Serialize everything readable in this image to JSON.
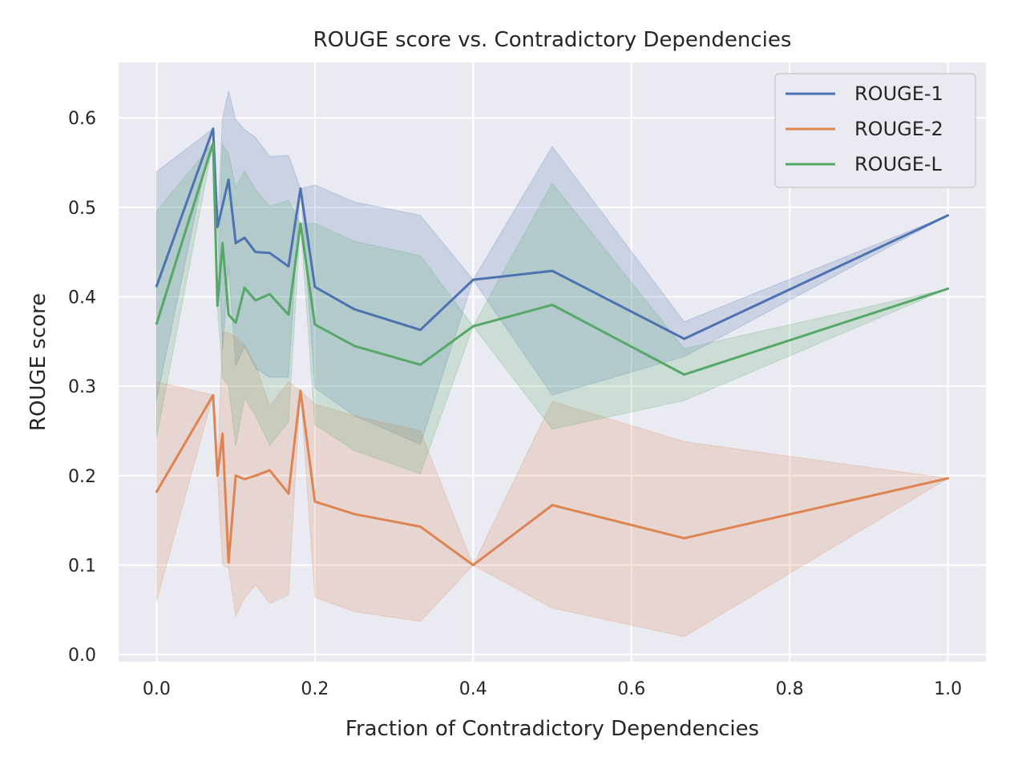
{
  "chart_data": {
    "type": "line",
    "title": "ROUGE score vs. Contradictory Dependencies",
    "xlabel": "Fraction of Contradictory Dependencies",
    "ylabel": "ROUGE score",
    "xlim": [
      -0.048,
      1.048
    ],
    "ylim": [
      -0.008,
      0.662
    ],
    "xticks": [
      0.0,
      0.2,
      0.4,
      0.6,
      0.8,
      1.0
    ],
    "xtick_labels": [
      "0.0",
      "0.2",
      "0.4",
      "0.6",
      "0.8",
      "1.0"
    ],
    "yticks": [
      0.0,
      0.1,
      0.2,
      0.3,
      0.4,
      0.5,
      0.6
    ],
    "ytick_labels": [
      "0.0",
      "0.1",
      "0.2",
      "0.3",
      "0.4",
      "0.5",
      "0.6"
    ],
    "grid": true,
    "background": "#eaeaf2",
    "legend_position": "top-right",
    "x": [
      0.0,
      0.0714,
      0.0769,
      0.0833,
      0.0909,
      0.1,
      0.1111,
      0.125,
      0.1429,
      0.1667,
      0.1818,
      0.2,
      0.25,
      0.3333,
      0.4,
      0.5,
      0.6667,
      1.0
    ],
    "series": [
      {
        "name": "ROUGE-1",
        "color": "#4c72b0",
        "values": [
          0.412,
          0.588,
          0.478,
          0.502,
          0.531,
          0.46,
          0.466,
          0.45,
          0.449,
          0.434,
          0.521,
          0.411,
          0.386,
          0.363,
          0.419,
          0.429,
          0.353,
          0.491
        ],
        "ci_lower": [
          0.285,
          0.588,
          0.478,
          0.34,
          0.435,
          0.323,
          0.345,
          0.32,
          0.31,
          0.31,
          0.521,
          0.298,
          0.267,
          0.235,
          0.419,
          0.29,
          0.333,
          0.491
        ],
        "ci_upper": [
          0.54,
          0.588,
          0.478,
          0.6,
          0.63,
          0.598,
          0.587,
          0.578,
          0.557,
          0.558,
          0.521,
          0.525,
          0.506,
          0.491,
          0.419,
          0.568,
          0.372,
          0.491
        ]
      },
      {
        "name": "ROUGE-2",
        "color": "#dd8452",
        "values": [
          0.182,
          0.29,
          0.2,
          0.247,
          0.103,
          0.2,
          0.196,
          0.2,
          0.206,
          0.18,
          0.295,
          0.171,
          0.157,
          0.143,
          0.1,
          0.167,
          0.13,
          0.197
        ],
        "ci_lower": [
          0.06,
          0.29,
          0.2,
          0.1,
          0.097,
          0.043,
          0.063,
          0.078,
          0.057,
          0.067,
          0.295,
          0.064,
          0.048,
          0.037,
          0.1,
          0.052,
          0.02,
          0.197
        ],
        "ci_upper": [
          0.305,
          0.29,
          0.2,
          0.36,
          0.36,
          0.355,
          0.346,
          0.324,
          0.278,
          0.305,
          0.295,
          0.28,
          0.267,
          0.25,
          0.1,
          0.283,
          0.238,
          0.197
        ]
      },
      {
        "name": "ROUGE-L",
        "color": "#55a868",
        "values": [
          0.37,
          0.572,
          0.39,
          0.46,
          0.38,
          0.371,
          0.41,
          0.396,
          0.403,
          0.38,
          0.482,
          0.369,
          0.345,
          0.324,
          0.367,
          0.391,
          0.313,
          0.409
        ],
        "ci_lower": [
          0.243,
          0.572,
          0.39,
          0.31,
          0.3,
          0.233,
          0.287,
          0.267,
          0.234,
          0.26,
          0.482,
          0.257,
          0.228,
          0.202,
          0.367,
          0.252,
          0.284,
          0.409
        ],
        "ci_upper": [
          0.496,
          0.572,
          0.39,
          0.57,
          0.56,
          0.522,
          0.541,
          0.52,
          0.501,
          0.508,
          0.482,
          0.482,
          0.462,
          0.446,
          0.367,
          0.527,
          0.342,
          0.409
        ]
      }
    ]
  }
}
